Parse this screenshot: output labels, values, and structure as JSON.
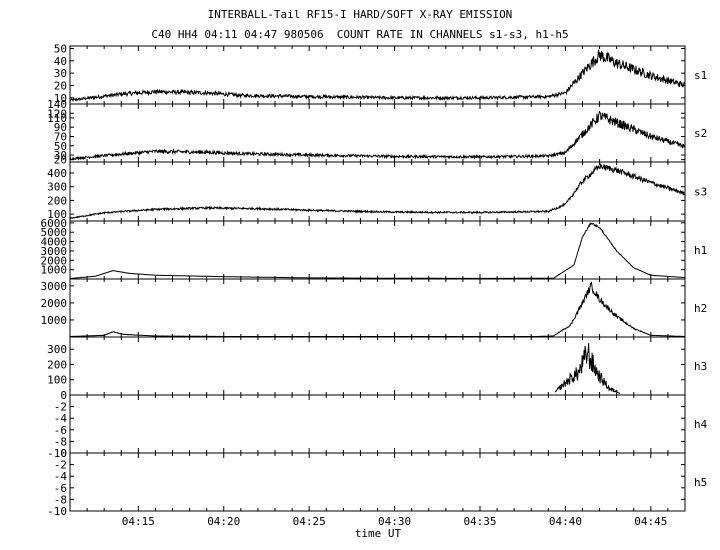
{
  "header": {
    "title": "INTERBALL-Tail RF15-I HARD/SOFT X-RAY EMISSION",
    "subtitle": "C40 HH4 04:11 04:47 980506  COUNT RATE IN CHANNELS s1-s3, h1-h5"
  },
  "chart_data": {
    "type": "line",
    "xlabel": "time UT",
    "x_range_min": [
      251,
      287
    ],
    "x_ticks": [
      {
        "min": 255,
        "label": "04:15"
      },
      {
        "min": 260,
        "label": "04:20"
      },
      {
        "min": 265,
        "label": "04:25"
      },
      {
        "min": 270,
        "label": "04:30"
      },
      {
        "min": 275,
        "label": "04:35"
      },
      {
        "min": 280,
        "label": "04:40"
      },
      {
        "min": 285,
        "label": "04:45"
      }
    ],
    "panels": [
      {
        "name": "s1",
        "ylim": [
          5,
          52
        ],
        "yticks": [
          10,
          20,
          30,
          40,
          50
        ],
        "noise": 0.12,
        "profile": [
          [
            251,
            8
          ],
          [
            254,
            13
          ],
          [
            256,
            15
          ],
          [
            259,
            14
          ],
          [
            261,
            12
          ],
          [
            265,
            11
          ],
          [
            270,
            10
          ],
          [
            275,
            10
          ],
          [
            279,
            11
          ],
          [
            280,
            14
          ],
          [
            281,
            30
          ],
          [
            282,
            45
          ],
          [
            283,
            38
          ],
          [
            285,
            28
          ],
          [
            287,
            20
          ]
        ]
      },
      {
        "name": "s2",
        "ylim": [
          15,
          140
        ],
        "yticks": [
          20,
          30,
          50,
          70,
          90,
          110,
          120,
          140
        ],
        "noise": 0.1,
        "profile": [
          [
            251,
            22
          ],
          [
            254,
            32
          ],
          [
            256,
            38
          ],
          [
            259,
            36
          ],
          [
            261,
            33
          ],
          [
            265,
            30
          ],
          [
            270,
            27
          ],
          [
            275,
            26
          ],
          [
            279,
            28
          ],
          [
            280,
            35
          ],
          [
            281,
            75
          ],
          [
            282,
            115
          ],
          [
            283,
            100
          ],
          [
            285,
            70
          ],
          [
            287,
            48
          ]
        ]
      },
      {
        "name": "s3",
        "ylim": [
          50,
          480
        ],
        "yticks": [
          100,
          200,
          300,
          400
        ],
        "noise": 0.05,
        "profile": [
          [
            251,
            70
          ],
          [
            253,
            110
          ],
          [
            256,
            135
          ],
          [
            259,
            145
          ],
          [
            262,
            140
          ],
          [
            266,
            125
          ],
          [
            270,
            115
          ],
          [
            275,
            112
          ],
          [
            279,
            120
          ],
          [
            280,
            170
          ],
          [
            281,
            340
          ],
          [
            282,
            450
          ],
          [
            283,
            420
          ],
          [
            285,
            330
          ],
          [
            287,
            250
          ]
        ]
      },
      {
        "name": "h1",
        "ylim": [
          0,
          6200
        ],
        "yticks": [
          1000,
          2000,
          3000,
          4000,
          5000,
          6000
        ],
        "noise": 0.015,
        "profile": [
          [
            251,
            50
          ],
          [
            252.5,
            300
          ],
          [
            253.5,
            900
          ],
          [
            254.5,
            600
          ],
          [
            256,
            400
          ],
          [
            260,
            250
          ],
          [
            265,
            120
          ],
          [
            270,
            80
          ],
          [
            275,
            60
          ],
          [
            279.3,
            80
          ],
          [
            280.5,
            1500
          ],
          [
            281,
            4500
          ],
          [
            281.5,
            6000
          ],
          [
            282,
            5500
          ],
          [
            283,
            3000
          ],
          [
            284,
            1200
          ],
          [
            285,
            400
          ],
          [
            287,
            150
          ]
        ]
      },
      {
        "name": "h2",
        "ylim": [
          0,
          3400
        ],
        "yticks": [
          1000,
          2000,
          3000
        ],
        "noise": 0.08,
        "profile": [
          [
            251,
            30
          ],
          [
            253,
            100
          ],
          [
            253.5,
            300
          ],
          [
            254.2,
            150
          ],
          [
            256,
            60
          ],
          [
            260,
            30
          ],
          [
            270,
            20
          ],
          [
            278,
            20
          ],
          [
            279.3,
            60
          ],
          [
            280.3,
            700
          ],
          [
            281,
            2000
          ],
          [
            281.5,
            3000
          ],
          [
            282,
            2200
          ],
          [
            283,
            1200
          ],
          [
            284,
            500
          ],
          [
            285,
            100
          ],
          [
            287,
            30
          ]
        ]
      },
      {
        "name": "h3",
        "ylim": [
          0,
          380
        ],
        "yticks": [
          100,
          200,
          300
        ],
        "noise": 0.35,
        "x_span": [
          279.4,
          283.2
        ],
        "profile": [
          [
            279.4,
            20
          ],
          [
            280,
            80
          ],
          [
            280.8,
            150
          ],
          [
            281.3,
            280
          ],
          [
            281.6,
            200
          ],
          [
            282,
            120
          ],
          [
            282.6,
            40
          ],
          [
            283.2,
            15
          ]
        ]
      },
      {
        "name": "h4",
        "ylim": [
          -10,
          0
        ],
        "yticks": [
          -10,
          -8,
          -6,
          -4,
          -2,
          0
        ],
        "noise": 0,
        "profile": []
      },
      {
        "name": "h5",
        "ylim": [
          -10,
          0
        ],
        "yticks": [
          -10,
          -8,
          -6,
          -4,
          -2,
          0
        ],
        "noise": 0,
        "profile": []
      }
    ]
  }
}
